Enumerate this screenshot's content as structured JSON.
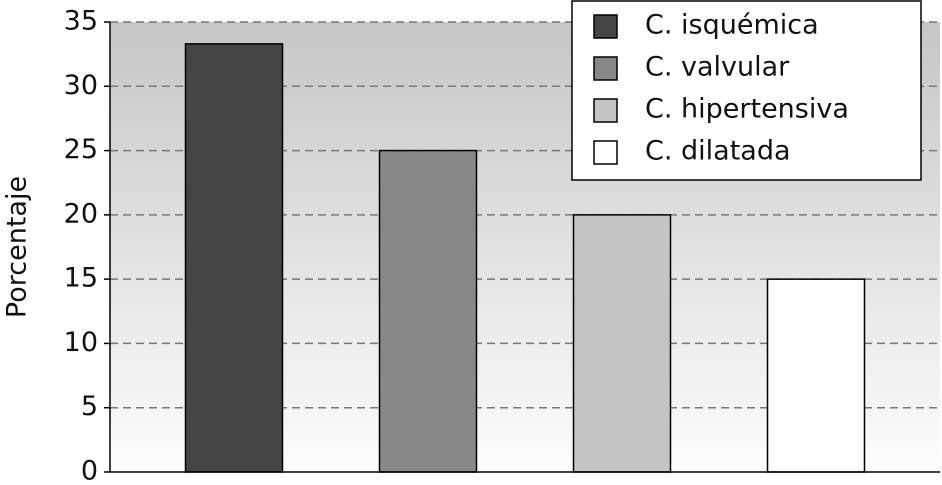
{
  "chart_data": {
    "type": "bar",
    "y_label": "Porcentaje",
    "categories": [
      null
    ],
    "series": [
      {
        "name": "C. isquémica",
        "color": "#454545",
        "values": [
          33.3
        ]
      },
      {
        "name": "C. valvular",
        "color": "#888888",
        "values": [
          25
        ]
      },
      {
        "name": "C. hipertensiva",
        "color": "#c4c4c4",
        "values": [
          20
        ]
      },
      {
        "name": "C. dilatada",
        "color": "#ffffff",
        "values": [
          15
        ]
      }
    ],
    "ylim": [
      0,
      35
    ],
    "yticks": [
      0,
      5,
      10,
      15,
      20,
      25,
      30,
      35
    ],
    "grid": true,
    "legend": "upper right"
  }
}
